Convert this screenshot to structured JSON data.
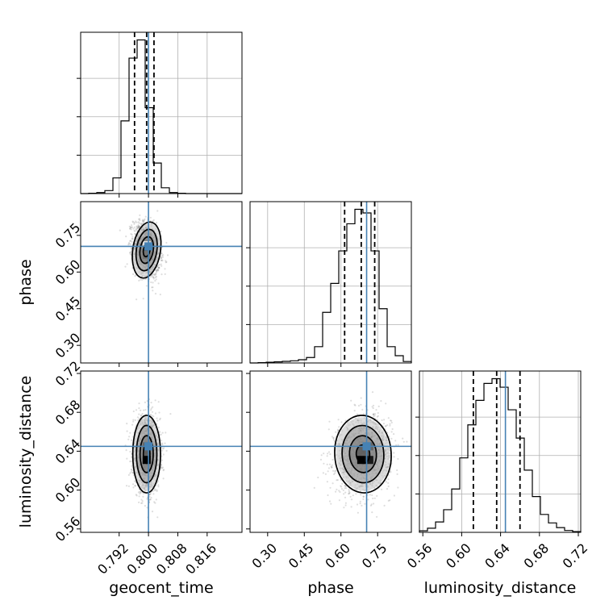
{
  "chart_data": {
    "type": "corner",
    "parameters": [
      "geocent_time",
      "phase",
      "luminosity_distance"
    ],
    "axis_labels": {
      "x": [
        "geocent_time",
        "phase",
        "luminosity_distance"
      ],
      "y": [
        "phase",
        "luminosity_distance"
      ]
    },
    "truths": [
      0.8,
      0.705,
      0.645
    ],
    "quantiles": [
      [
        0.7962,
        0.7995,
        0.8015
      ],
      [
        0.615,
        0.683,
        0.738
      ],
      [
        0.612,
        0.636,
        0.66
      ]
    ],
    "ranges": {
      "geocent_time": [
        0.7815,
        0.8255
      ],
      "phase": [
        0.228,
        0.888
      ],
      "luminosity_distance": [
        0.5565,
        0.7225
      ]
    },
    "ticks": {
      "geocent_time": [
        "0.792",
        "0.800",
        "0.808",
        "0.816"
      ],
      "phase": [
        "0.30",
        "0.45",
        "0.60",
        "0.75"
      ],
      "luminosity_distance": [
        "0.56",
        "0.60",
        "0.64",
        "0.68",
        "0.72"
      ]
    },
    "histograms": [
      {
        "param": "geocent_time",
        "edges": [
          0.7815,
          0.7837,
          0.7859,
          0.7881,
          0.7903,
          0.7925,
          0.7947,
          0.7969,
          0.7991,
          0.8013,
          0.8035,
          0.8057,
          0.8079,
          0.8101,
          0.8123,
          0.8145,
          0.8167,
          0.8189,
          0.8211,
          0.8233,
          0.8255
        ],
        "counts": [
          0,
          2,
          6,
          18,
          95,
          440,
          820,
          930,
          520,
          185,
          35,
          6,
          2,
          0,
          0,
          0,
          0,
          0,
          0,
          0
        ]
      },
      {
        "param": "phase",
        "edges": [
          0.228,
          0.261,
          0.294,
          0.327,
          0.36,
          0.393,
          0.426,
          0.459,
          0.492,
          0.525,
          0.558,
          0.591,
          0.624,
          0.657,
          0.69,
          0.723,
          0.756,
          0.789,
          0.822,
          0.855,
          0.888
        ],
        "counts": [
          0,
          2,
          4,
          6,
          9,
          12,
          18,
          30,
          90,
          280,
          440,
          620,
          770,
          850,
          830,
          620,
          300,
          90,
          40,
          8
        ]
      },
      {
        "param": "luminosity_distance",
        "edges": [
          0.5565,
          0.5648,
          0.5731,
          0.5814,
          0.5897,
          0.598,
          0.6063,
          0.6146,
          0.6229,
          0.6312,
          0.6395,
          0.6478,
          0.6561,
          0.6644,
          0.6727,
          0.681,
          0.6893,
          0.6976,
          0.7059,
          0.7142,
          0.7225
        ],
        "counts": [
          8,
          22,
          55,
          120,
          230,
          395,
          570,
          700,
          790,
          815,
          770,
          650,
          500,
          330,
          190,
          95,
          50,
          25,
          10,
          4
        ]
      }
    ],
    "density_panels": [
      {
        "x": "geocent_time",
        "y": "phase",
        "center": [
          0.7995,
          0.69
        ],
        "sigma": [
          0.0018,
          0.055
        ],
        "rho": -0.25,
        "samples": 1600,
        "hist_cells": [
          [
            0.7995,
            0.71,
            0.12
          ],
          [
            0.7995,
            0.67,
            0.55
          ]
        ]
      },
      {
        "x": "geocent_time",
        "y": "luminosity_distance",
        "center": [
          0.7995,
          0.637
        ],
        "sigma": [
          0.0018,
          0.019
        ],
        "rho": 0.0,
        "samples": 1600,
        "hist_cells": [
          [
            0.7995,
            0.631,
            1.0
          ],
          [
            0.7995,
            0.645,
            0.6
          ]
        ]
      },
      {
        "x": "phase",
        "y": "luminosity_distance",
        "center": [
          0.69,
          0.637
        ],
        "sigma": [
          0.055,
          0.019
        ],
        "rho": 0.1,
        "samples": 1600,
        "hist_cells": [
          [
            0.683,
            0.631,
            1.0
          ],
          [
            0.716,
            0.631,
            0.9
          ],
          [
            0.716,
            0.645,
            0.6
          ]
        ]
      }
    ],
    "colors": {
      "truth": "#4682b4",
      "hist": "#000000",
      "grid": "#b0b0b0",
      "points": "#000000"
    },
    "grid": true
  }
}
